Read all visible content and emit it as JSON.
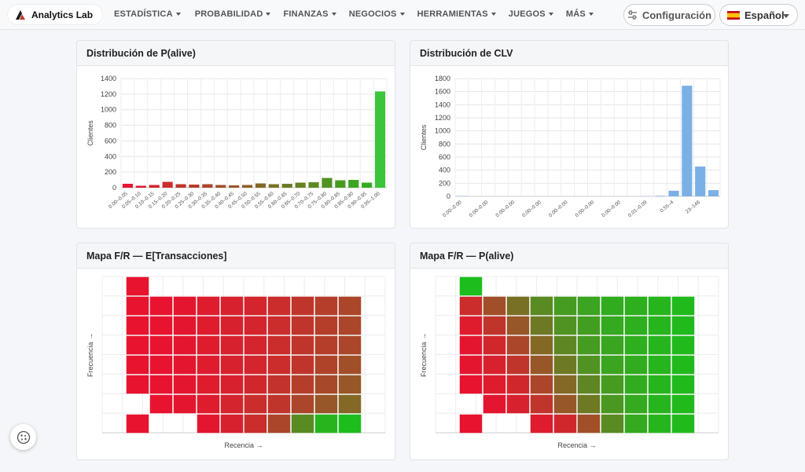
{
  "brand": {
    "name": "Analytics Lab"
  },
  "nav": {
    "items": [
      "ESTADÍSTICA",
      "PROBABILIDAD",
      "FINANZAS",
      "NEGOCIOS",
      "HERRAMIENTAS",
      "JUEGOS",
      "MÁS"
    ],
    "config_label": "Configuración",
    "language_label": "Español"
  },
  "panels": {
    "palive": {
      "title": "Distribución de P(alive)"
    },
    "clv": {
      "title": "Distribución de CLV"
    },
    "map_trans": {
      "title": "Mapa F/R — E[Transacciones]",
      "x_label": "Recencia →",
      "y_label": "Frecuencia →"
    },
    "map_palive": {
      "title": "Mapa F/R — P(alive)",
      "x_label": "Recencia →",
      "y_label": "Frecuencia →"
    }
  },
  "colors": {
    "bar_green": "#3cc43c",
    "bar_blue": "#7ab0e6",
    "heat_red": "#e8132f",
    "heat_green": "#1dbd1d"
  },
  "chart_data": [
    {
      "type": "bar",
      "title": "Distribución de P(alive)",
      "ylabel": "Clientes",
      "ylim": [
        0,
        1400
      ],
      "yticks": [
        0,
        200,
        400,
        600,
        800,
        1000,
        1200,
        1400
      ],
      "categories": [
        "0.00–0.05",
        "0.05–0.10",
        "0.10–0.15",
        "0.15–0.20",
        "0.20–0.25",
        "0.25–0.30",
        "0.30–0.35",
        "0.35–0.40",
        "0.40–0.45",
        "0.45–0.50",
        "0.50–0.55",
        "0.55–0.60",
        "0.60–0.65",
        "0.65–0.70",
        "0.70–0.75",
        "0.75–0.80",
        "0.80–0.85",
        "0.85–0.90",
        "0.90–0.95",
        "0.95–1.00"
      ],
      "values": [
        50,
        25,
        35,
        75,
        45,
        40,
        45,
        35,
        30,
        35,
        55,
        45,
        50,
        65,
        70,
        125,
        95,
        100,
        65,
        1235
      ],
      "grid": true
    },
    {
      "type": "bar",
      "title": "Distribución de CLV",
      "ylabel": "Clientes",
      "ylim": [
        0,
        1800
      ],
      "yticks": [
        0,
        200,
        400,
        600,
        800,
        1000,
        1200,
        1400,
        1600,
        1800
      ],
      "categories": [
        "0.00–0.00",
        "",
        "0.00–0.00",
        "",
        "0.00–0.00",
        "",
        "0.00–0.00",
        "",
        "0.00–0.00",
        "",
        "0.00–0.00",
        "",
        "0.00–0.00",
        "",
        "0.01–0.09",
        "",
        "0.55–4",
        "",
        "23–146",
        ""
      ],
      "values": [
        5,
        0,
        0,
        0,
        0,
        0,
        0,
        0,
        0,
        0,
        0,
        0,
        0,
        0,
        2,
        8,
        85,
        1690,
        455,
        95
      ],
      "grid": true
    },
    {
      "type": "heatmap",
      "title": "Mapa F/R — E[Transacciones]",
      "xlabel": "Recencia →",
      "ylabel": "Frecuencia →",
      "cols": 10,
      "values": [
        [
          0.0,
          null,
          null,
          null,
          null,
          null,
          null,
          null,
          null,
          null
        ],
        [
          0.0,
          0.0,
          0.02,
          0.05,
          0.08,
          0.1,
          0.15,
          0.2,
          0.25,
          0.3
        ],
        [
          0.0,
          0.0,
          0.02,
          0.05,
          0.08,
          0.1,
          0.15,
          0.2,
          0.25,
          0.3
        ],
        [
          0.0,
          0.0,
          0.02,
          0.05,
          0.08,
          0.1,
          0.15,
          0.2,
          0.25,
          0.3
        ],
        [
          0.0,
          0.0,
          0.02,
          0.05,
          0.08,
          0.1,
          0.15,
          0.2,
          0.28,
          0.35
        ],
        [
          0.0,
          0.0,
          0.02,
          0.05,
          0.08,
          0.12,
          0.18,
          0.25,
          0.32,
          0.4
        ],
        [
          null,
          0.0,
          0.02,
          0.05,
          0.1,
          0.15,
          0.2,
          0.3,
          0.4,
          0.5
        ],
        [
          0.0,
          null,
          null,
          0.02,
          0.08,
          0.15,
          0.3,
          0.7,
          0.95,
          1.0
        ]
      ]
    },
    {
      "type": "heatmap",
      "title": "Mapa F/R — P(alive)",
      "xlabel": "Recencia →",
      "ylabel": "Frecuencia →",
      "cols": 10,
      "values": [
        [
          1.0,
          null,
          null,
          null,
          null,
          null,
          null,
          null,
          null,
          null
        ],
        [
          0.15,
          0.35,
          0.55,
          0.7,
          0.8,
          0.85,
          0.9,
          0.92,
          0.95,
          0.98
        ],
        [
          0.05,
          0.2,
          0.4,
          0.6,
          0.75,
          0.82,
          0.88,
          0.92,
          0.95,
          0.98
        ],
        [
          0.02,
          0.12,
          0.3,
          0.5,
          0.68,
          0.8,
          0.86,
          0.92,
          0.95,
          0.98
        ],
        [
          0.02,
          0.08,
          0.2,
          0.4,
          0.6,
          0.75,
          0.85,
          0.9,
          0.95,
          0.98
        ],
        [
          0.0,
          0.05,
          0.12,
          0.3,
          0.5,
          0.68,
          0.8,
          0.9,
          0.95,
          0.98
        ],
        [
          null,
          0.02,
          0.08,
          0.2,
          0.4,
          0.6,
          0.78,
          0.88,
          0.95,
          0.98
        ],
        [
          0.0,
          null,
          null,
          0.05,
          0.12,
          0.35,
          0.7,
          0.88,
          0.95,
          0.98
        ]
      ]
    }
  ]
}
